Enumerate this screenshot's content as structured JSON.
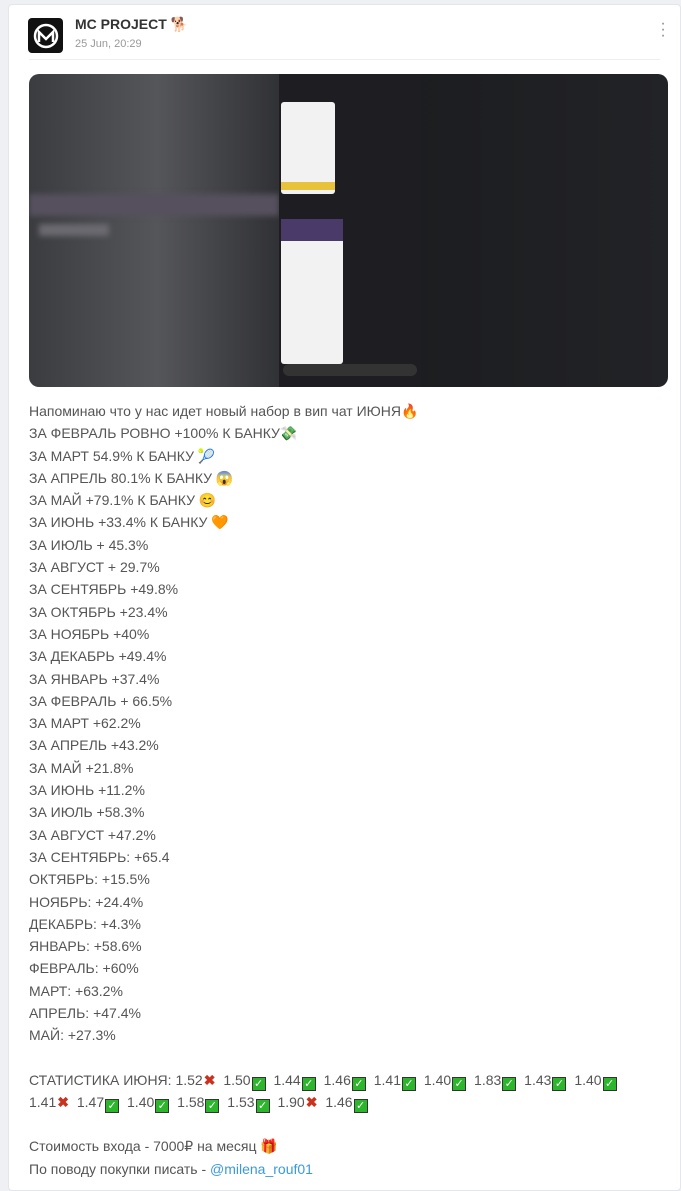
{
  "post": {
    "channel_name": "MC PROJECT 🐕",
    "date": "25 Jun, 20:29",
    "lines": [
      "Напоминаю что у нас идет новый набор в вип чат ИЮНЯ🔥",
      "ЗА ФЕВРАЛЬ РОВНО +100% К БАНКУ💸",
      "ЗА МАРТ 54.9% К БАНКУ 🎾",
      "ЗА АПРЕЛЬ 80.1% К БАНКУ 😱",
      "ЗА МАЙ +79.1% К БАНКУ 😊",
      "ЗА ИЮНЬ +33.4% К БАНКУ 🧡",
      "ЗА ИЮЛЬ + 45.3%",
      "ЗА АВГУСТ + 29.7%",
      "ЗА СЕНТЯБРЬ +49.8%",
      "ЗА ОКТЯБРЬ +23.4%",
      "ЗА НОЯБРЬ +40%",
      "ЗА ДЕКАБРЬ +49.4%",
      "ЗА ЯНВАРЬ +37.4%",
      "ЗА ФЕВРАЛЬ + 66.5%",
      "ЗА МАРТ +62.2%",
      "ЗА АПРЕЛЬ +43.2%",
      "ЗА МАЙ +21.8%",
      "ЗА ИЮНЬ +11.2%",
      "ЗА ИЮЛЬ +58.3%",
      "ЗА АВГУСТ +47.2%",
      "ЗА СЕНТЯБРЬ: +65.4",
      "ОКТЯБРЬ: +15.5%",
      "НОЯБРЬ: +24.4%",
      "ДЕКАБРЬ: +4.3%",
      "ЯНВАРЬ: +58.6%",
      "ФЕВРАЛЬ: +60%",
      "МАРТ: +63.2%",
      "АПРЕЛЬ: +47.4%",
      "МАЙ: +27.3%"
    ],
    "stats_label": "СТАТИСТИКА ИЮНЯ:",
    "stats": [
      {
        "value": "1.52",
        "result": "loss"
      },
      {
        "value": "1.50",
        "result": "win"
      },
      {
        "value": "1.44",
        "result": "win"
      },
      {
        "value": "1.46",
        "result": "win"
      },
      {
        "value": "1.41",
        "result": "win"
      },
      {
        "value": "1.40",
        "result": "win"
      },
      {
        "value": "1.83",
        "result": "win"
      },
      {
        "value": "1.43",
        "result": "win"
      },
      {
        "value": "1.40",
        "result": "win"
      },
      {
        "value": "1.41",
        "result": "loss"
      },
      {
        "value": "1.47",
        "result": "win"
      },
      {
        "value": "1.40",
        "result": "win"
      },
      {
        "value": "1.58",
        "result": "win"
      },
      {
        "value": "1.53",
        "result": "win"
      },
      {
        "value": "1.90",
        "result": "loss"
      },
      {
        "value": "1.46",
        "result": "win"
      }
    ],
    "price_line": "Стоимость входа - 7000₽ на месяц 🎁",
    "contact_prefix": "По поводу покупки писать - ",
    "contact_link": "@milena_rouf01",
    "icons": {
      "win": "check-mark-button",
      "loss": "cross-mark",
      "menu": "vertical-dots"
    },
    "colors": {
      "link": "#3a9ad9",
      "win": "#2bb62b",
      "loss": "#c8321e"
    }
  }
}
